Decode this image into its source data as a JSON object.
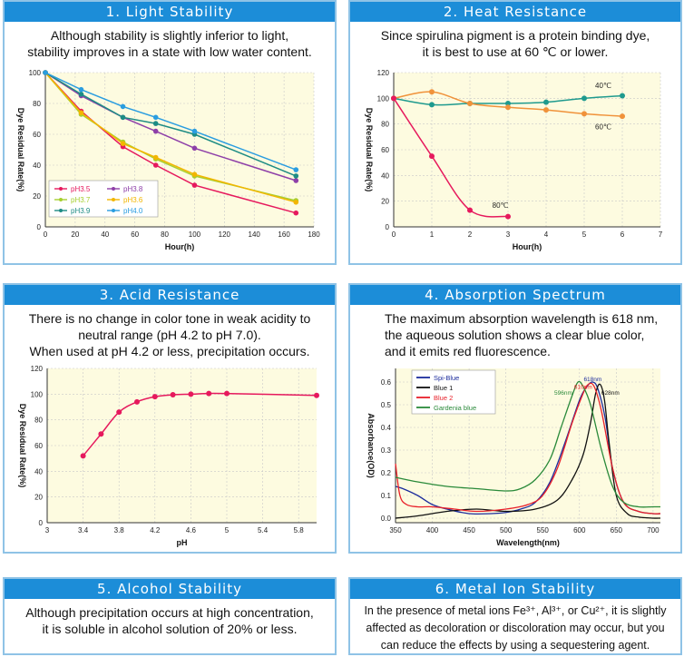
{
  "colors": {
    "header_bg": "#1c8dd8",
    "panel_border": "#8fc3e6",
    "plot_bg": "#fdfbe0",
    "grid": "#c8c8c8"
  },
  "panels": [
    {
      "title": "1. Light Stability",
      "desc": [
        "Although stability is slightly inferior to light,",
        "stability improves in a state with low water content."
      ]
    },
    {
      "title": "2. Heat Resistance",
      "desc": [
        "Since spirulina pigment is a protein binding dye,",
        "it is best to use at 60 ℃ or lower."
      ]
    },
    {
      "title": "3. Acid Resistance",
      "desc": [
        "There is no change in color tone in weak acidity to",
        "neutral range (pH 4.2 to pH 7.0).",
        "When used at pH 4.2 or less, precipitation occurs."
      ]
    },
    {
      "title": "4. Absorption Spectrum",
      "desc": [
        "The maximum absorption wavelength is 618 nm,",
        "the aqueous solution shows a clear blue color,",
        "and it emits red fluorescence."
      ]
    },
    {
      "title": "5. Alcohol Stability",
      "desc": [
        "Although precipitation occurs at high concentration,",
        "it is soluble in alcohol solution of 20% or less."
      ]
    },
    {
      "title": "6. Metal Ion Stability",
      "desc": [
        "In the presence of metal ions Fe³⁺, Al³⁺, or Cu²⁺, it is slightly",
        "affected as decoloration or discoloration may occur, but you",
        "can reduce the effects by using a sequestering agent."
      ]
    }
  ],
  "chart_data": [
    {
      "type": "line",
      "title": "",
      "xlabel": "Hour(h)",
      "ylabel": "Dye Residual Rate(%)",
      "xlim": [
        0,
        180
      ],
      "ylim": [
        0,
        100
      ],
      "xticks": [
        0,
        20,
        40,
        60,
        80,
        100,
        120,
        140,
        160,
        180
      ],
      "yticks": [
        0,
        20,
        40,
        60,
        80,
        100
      ],
      "legend_position": "bottom-left",
      "series": [
        {
          "name": "pH3.5",
          "color": "#e6195d",
          "x": [
            0,
            24,
            52,
            74,
            100,
            168
          ],
          "y": [
            100,
            75,
            52,
            40,
            27,
            9
          ]
        },
        {
          "name": "pH3.8",
          "color": "#8e3fa8",
          "x": [
            0,
            24,
            52,
            74,
            100,
            168
          ],
          "y": [
            100,
            85,
            71,
            62,
            51,
            30
          ]
        },
        {
          "name": "pH3.7",
          "color": "#a6cf2f",
          "x": [
            0,
            24,
            52,
            74,
            100,
            168
          ],
          "y": [
            100,
            73,
            55,
            44,
            33,
            17
          ]
        },
        {
          "name": "pH3.6",
          "color": "#f2b600",
          "x": [
            0,
            24,
            52,
            74,
            100,
            168
          ],
          "y": [
            100,
            74,
            54,
            45,
            34,
            16
          ]
        },
        {
          "name": "pH3.9",
          "color": "#1e8c84",
          "x": [
            0,
            24,
            52,
            74,
            100,
            168
          ],
          "y": [
            100,
            86,
            71,
            67,
            60,
            33
          ]
        },
        {
          "name": "pH4.0",
          "color": "#2a9de0",
          "x": [
            0,
            24,
            52,
            74,
            100,
            168
          ],
          "y": [
            100,
            89,
            78,
            71,
            62,
            37
          ]
        }
      ]
    },
    {
      "type": "line",
      "title": "",
      "xlabel": "Hour(h)",
      "ylabel": "Dye Residual Rate(%)",
      "xlim": [
        0,
        7
      ],
      "ylim": [
        0,
        120
      ],
      "xticks": [
        0,
        1,
        2,
        3,
        4,
        5,
        6,
        7
      ],
      "yticks": [
        0,
        20,
        40,
        60,
        80,
        100,
        120
      ],
      "series": [
        {
          "name": "40℃",
          "color": "#1e9a8e",
          "x": [
            0,
            1,
            2,
            3,
            4,
            5,
            6
          ],
          "y": [
            100,
            95,
            96,
            96,
            97,
            100,
            102
          ]
        },
        {
          "name": "60℃",
          "color": "#f0923a",
          "x": [
            0,
            1,
            2,
            3,
            4,
            5,
            6
          ],
          "y": [
            100,
            105,
            96,
            93,
            91,
            88,
            86
          ]
        },
        {
          "name": "80℃",
          "color": "#e6195d",
          "x": [
            0,
            1,
            2,
            3
          ],
          "y": [
            100,
            55,
            13,
            8
          ]
        }
      ]
    },
    {
      "type": "line",
      "title": "",
      "xlabel": "pH",
      "ylabel": "Dye Residual Rate(%)",
      "xlim": [
        3,
        6
      ],
      "ylim": [
        0,
        120
      ],
      "xticks": [
        3,
        3.4,
        3.8,
        4.2,
        4.6,
        5,
        5.4,
        5.8
      ],
      "yticks": [
        0,
        20,
        40,
        60,
        80,
        100,
        120
      ],
      "series": [
        {
          "name": "",
          "color": "#e6195d",
          "x": [
            3.4,
            3.6,
            3.8,
            4.0,
            4.2,
            4.4,
            4.6,
            4.8,
            5.0,
            6.0
          ],
          "y": [
            52,
            69,
            86,
            94,
            98,
            99.5,
            100,
            100.5,
            100.5,
            99
          ]
        }
      ]
    },
    {
      "type": "line",
      "title": "",
      "xlabel": "Wavelength(nm)",
      "ylabel": "Absorbance(OD)",
      "xlim": [
        350,
        710
      ],
      "ylim": [
        -0.02,
        0.66
      ],
      "xticks": [
        350,
        400,
        450,
        500,
        550,
        600,
        650,
        700
      ],
      "yticks": [
        0.0,
        0.1,
        0.2,
        0.3,
        0.4,
        0.5,
        0.6
      ],
      "legend_position": "top-left",
      "annotations": [
        {
          "text": "618nm",
          "x": 618,
          "y": 0.605
        },
        {
          "text": "610nm",
          "x": 605,
          "y": 0.57
        },
        {
          "text": "596nm",
          "x": 578,
          "y": 0.545
        },
        {
          "text": "628nm",
          "x": 642,
          "y": 0.545
        }
      ],
      "series": [
        {
          "name": "Spi-Blue",
          "color": "#1c2c9c",
          "x": [
            350,
            360,
            380,
            400,
            420,
            450,
            480,
            500,
            520,
            540,
            560,
            580,
            600,
            610,
            618,
            625,
            635,
            645,
            660,
            680,
            700,
            710
          ],
          "y": [
            0.14,
            0.13,
            0.1,
            0.06,
            0.04,
            0.02,
            0.02,
            0.025,
            0.04,
            0.07,
            0.16,
            0.33,
            0.52,
            0.58,
            0.6,
            0.57,
            0.44,
            0.22,
            0.07,
            0.03,
            0.02,
            0.02
          ]
        },
        {
          "name": "Blue 1",
          "color": "#111111",
          "x": [
            350,
            380,
            420,
            460,
            500,
            540,
            570,
            590,
            605,
            615,
            622,
            628,
            634,
            640,
            650,
            665,
            680,
            700,
            710
          ],
          "y": [
            0.0,
            0.01,
            0.03,
            0.04,
            0.03,
            0.04,
            0.08,
            0.17,
            0.28,
            0.42,
            0.55,
            0.59,
            0.52,
            0.34,
            0.1,
            0.02,
            0.005,
            0.0,
            0.0
          ]
        },
        {
          "name": "Blue 2",
          "color": "#e8202a",
          "x": [
            350,
            356,
            365,
            380,
            400,
            430,
            460,
            500,
            530,
            550,
            570,
            590,
            605,
            612,
            620,
            630,
            645,
            660,
            680,
            700,
            710
          ],
          "y": [
            0.24,
            0.1,
            0.06,
            0.05,
            0.05,
            0.04,
            0.03,
            0.04,
            0.06,
            0.1,
            0.22,
            0.42,
            0.55,
            0.59,
            0.58,
            0.47,
            0.22,
            0.07,
            0.03,
            0.02,
            0.02
          ]
        },
        {
          "name": "Gardenia blue",
          "color": "#2a8a3a",
          "x": [
            350,
            380,
            420,
            460,
            500,
            520,
            540,
            560,
            575,
            590,
            598,
            605,
            615,
            630,
            645,
            660,
            680,
            700,
            710
          ],
          "y": [
            0.18,
            0.16,
            0.14,
            0.13,
            0.12,
            0.13,
            0.17,
            0.26,
            0.4,
            0.54,
            0.6,
            0.58,
            0.5,
            0.3,
            0.14,
            0.07,
            0.05,
            0.05,
            0.05
          ]
        }
      ]
    }
  ]
}
